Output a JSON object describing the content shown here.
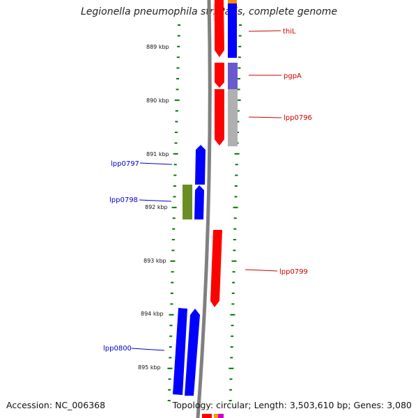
{
  "title": "Legionella pneumophila str. Paris, complete genome",
  "footer": {
    "accession": "Accession: NC_006368",
    "summary": "Topology: circular; Length: 3,503,610 bp; Genes: 3,080"
  },
  "colors": {
    "forward_gene": "#ff0000",
    "reverse_gene": "#0000ff",
    "other_gene": "#6b8e23",
    "tick": "#007700",
    "backbone": "#808080",
    "forward_label": "#cc0000",
    "reverse_label": "#0000cc"
  },
  "scale": {
    "unit": "kbp",
    "ticks": [
      {
        "label": "889 kbp"
      },
      {
        "label": "890 kbp"
      },
      {
        "label": "891 kbp"
      },
      {
        "label": "892 kbp"
      },
      {
        "label": "893 kbp"
      },
      {
        "label": "894 kbp"
      },
      {
        "label": "895 kbp"
      }
    ]
  },
  "genes": [
    {
      "name": "thiL",
      "strand": "+"
    },
    {
      "name": "pgpA",
      "strand": "+"
    },
    {
      "name": "lpp0796",
      "strand": "+"
    },
    {
      "name": "lpp0797",
      "strand": "-"
    },
    {
      "name": "lpp0798",
      "strand": "-"
    },
    {
      "name": "lpp0799",
      "strand": "+"
    },
    {
      "name": "lpp0800",
      "strand": "-"
    }
  ]
}
